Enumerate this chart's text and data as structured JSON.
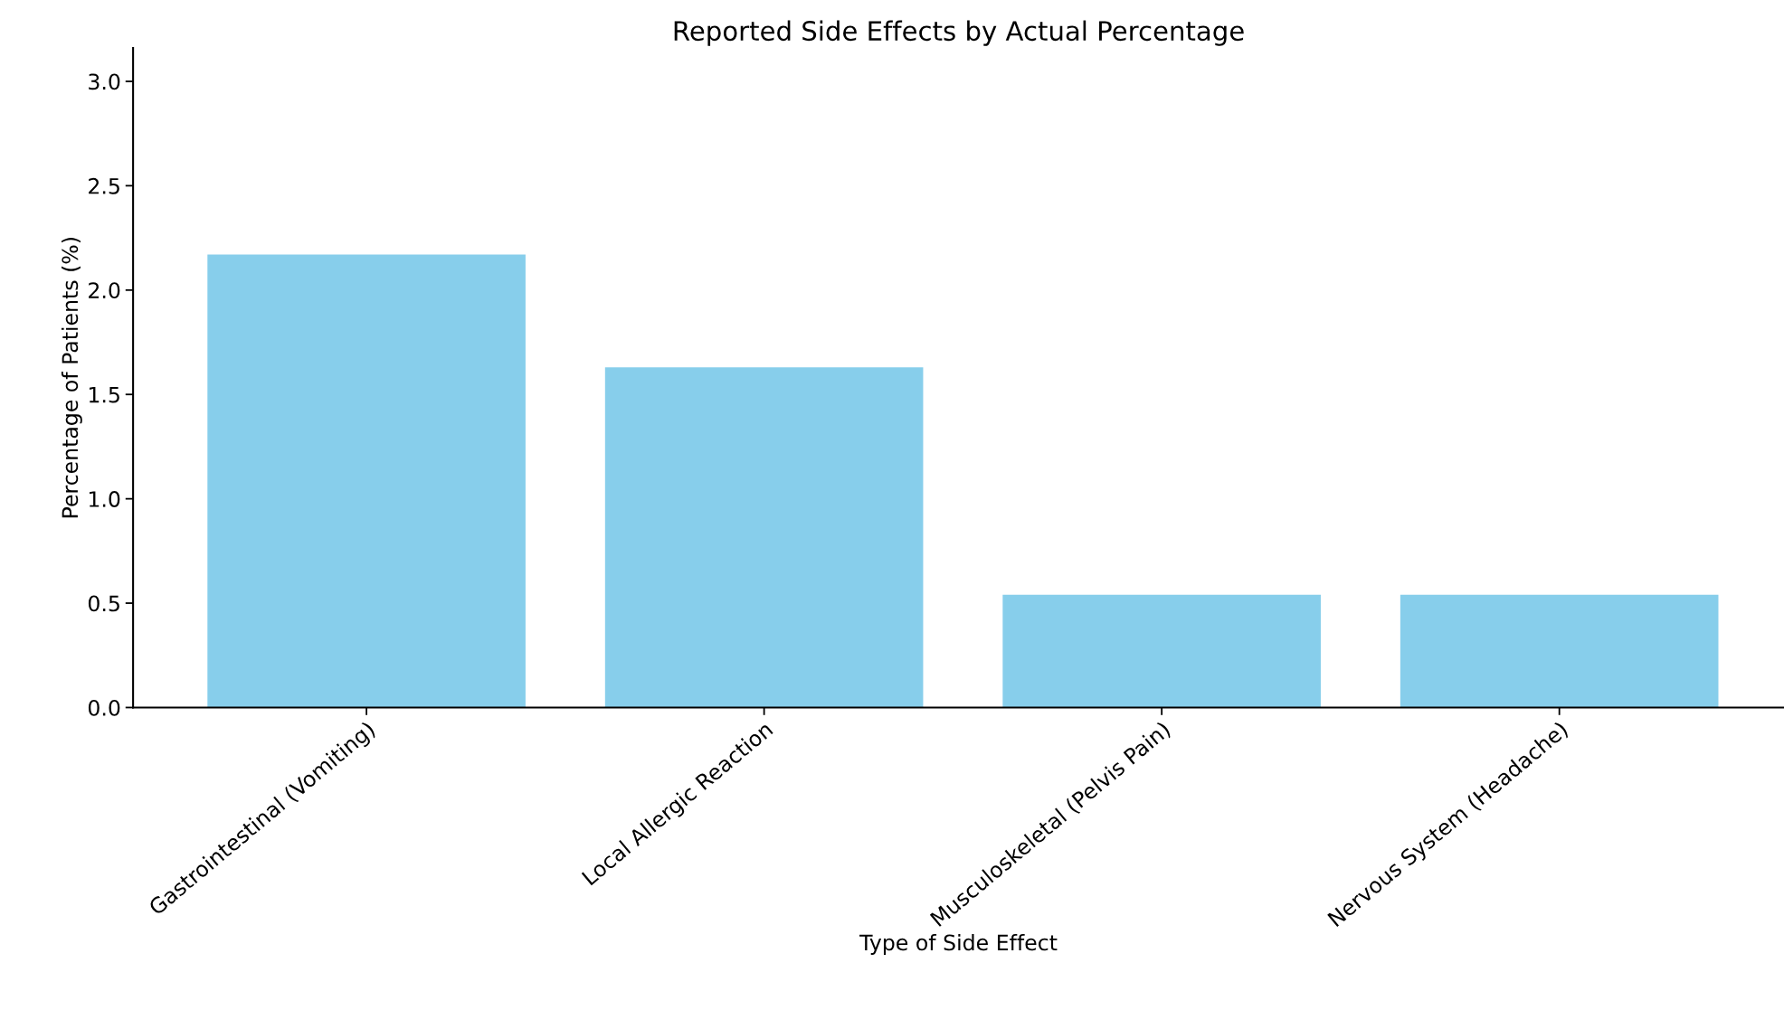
{
  "chart_data": {
    "type": "bar",
    "title": "Reported Side Effects by Actual Percentage",
    "xlabel": "Type of Side Effect",
    "ylabel": "Percentage of Patients (%)",
    "categories": [
      "Gastrointestinal (Vomiting)",
      "Local Allergic Reaction",
      "Musculoskeletal (Pelvis Pain)",
      "Nervous System (Headache)"
    ],
    "values": [
      2.17,
      1.63,
      0.54,
      0.54
    ],
    "color": "#87ceeb",
    "ylim": [
      0,
      3.16
    ],
    "yticks": [
      {
        "value": 0,
        "label": "0.0"
      },
      {
        "value": 0.5,
        "label": "0.5"
      },
      {
        "value": 1,
        "label": "1.0"
      },
      {
        "value": 1.5,
        "label": "1.5"
      },
      {
        "value": 2,
        "label": "2.0"
      },
      {
        "value": 2.5,
        "label": "2.5"
      },
      {
        "value": 3,
        "label": "3.0"
      }
    ],
    "grid": false
  }
}
